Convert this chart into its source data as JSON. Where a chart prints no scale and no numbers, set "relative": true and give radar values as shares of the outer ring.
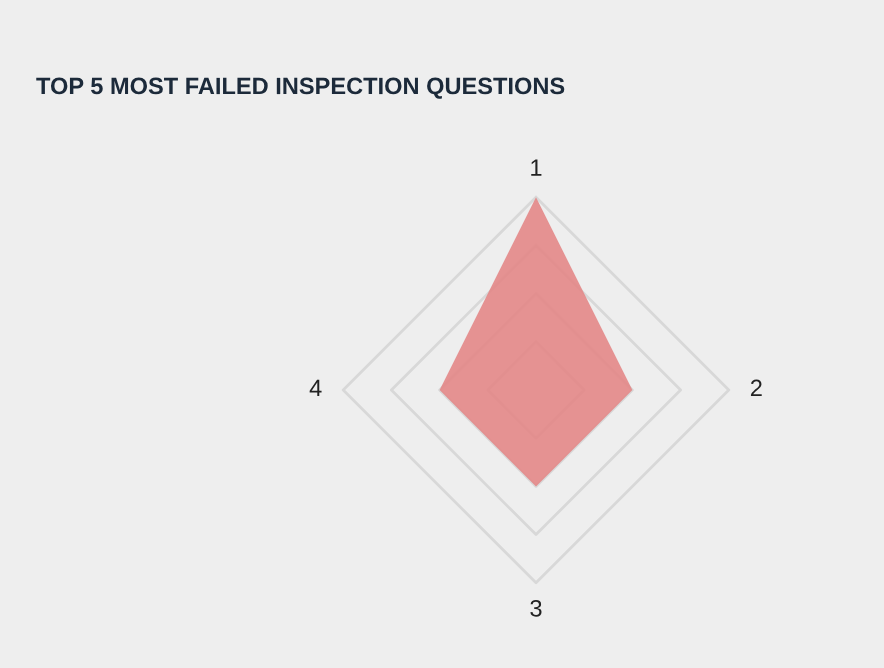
{
  "chart_data": {
    "type": "radar",
    "title": "TOP 5 MOST FAILED INSPECTION QUESTIONS",
    "categories": [
      "1",
      "2",
      "3",
      "4"
    ],
    "relative": true,
    "grid": true,
    "series": [
      {
        "color": "#e38787",
        "values": [
          1,
          0.5,
          0.5,
          0.5
        ]
      }
    ]
  }
}
